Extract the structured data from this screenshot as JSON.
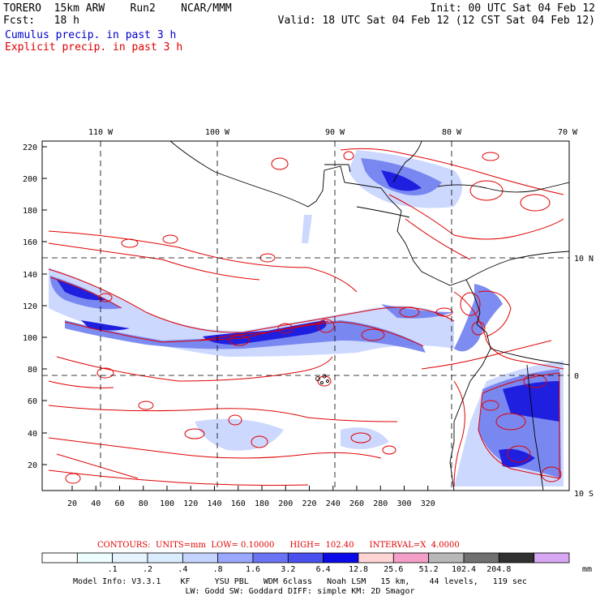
{
  "header": {
    "line1_left": "TORERO  15km ARW    Run2    NCAR/MMM",
    "line1_right": "Init: 00 UTC Sat 04 Feb 12",
    "line2_left": "Fcst:   18 h",
    "line2_right": "Valid: 18 UTC Sat 04 Feb 12 (12 CST Sat 04 Feb 12)",
    "cumulus_label": "Cumulus precip. in past 3 h",
    "explicit_label": "Explicit precip. in past 3 h"
  },
  "map": {
    "lon_labels": [
      "110 W",
      "100 W",
      "90 W",
      "80 W",
      "70 W"
    ],
    "lat_labels": [
      "10 N",
      "0",
      "10 S"
    ],
    "y_ticks": [
      "220",
      "200",
      "180",
      "160",
      "140",
      "120",
      "100",
      "80",
      "60",
      "40",
      "20"
    ],
    "x_ticks": [
      "20",
      "40",
      "60",
      "80",
      "100",
      "120",
      "140",
      "160",
      "180",
      "200",
      "220",
      "240",
      "260",
      "280",
      "300",
      "320"
    ],
    "colors": {
      "explicit_contour": "#e00000",
      "cumulus_light": "#c8d4ff",
      "cumulus_mid": "#7080f0",
      "cumulus_dark": "#1f1fe0",
      "coast": "#000000"
    }
  },
  "legend": {
    "contours_text": "CONTOURS:  UNITS=mm  LOW= 0.10000      HIGH=  102.40      INTERVAL=X  4.0000",
    "boxes": [
      {
        "color": "#ffffff"
      },
      {
        "color": "#eeffff"
      },
      {
        "color": "#e6f4ff"
      },
      {
        "color": "#dcecff"
      },
      {
        "color": "#c4d4ff"
      },
      {
        "color": "#9aa8ff"
      },
      {
        "color": "#6a74f4"
      },
      {
        "color": "#4a50ee"
      },
      {
        "color": "#0a0ae8"
      },
      {
        "color": "#ffd4d4"
      },
      {
        "color": "#f3a0c8"
      },
      {
        "color": "#b8b8b8"
      },
      {
        "color": "#707070"
      },
      {
        "color": "#303030"
      },
      {
        "color": "#d8a8f4"
      }
    ],
    "values": [
      ".1",
      ".2",
      ".4",
      ".8",
      "1.6",
      "3.2",
      "6.4",
      "12.8",
      "25.6",
      "51.2",
      "102.4",
      "204.8"
    ],
    "unit": "mm"
  },
  "info": {
    "line1": "Model Info: V3.3.1    KF     YSU PBL   WDM 6class   Noah LSM   15 km,    44 levels,   119 sec",
    "line2": "LW: Godd SW: Goddard DIFF: simple KM: 2D Smagor"
  }
}
